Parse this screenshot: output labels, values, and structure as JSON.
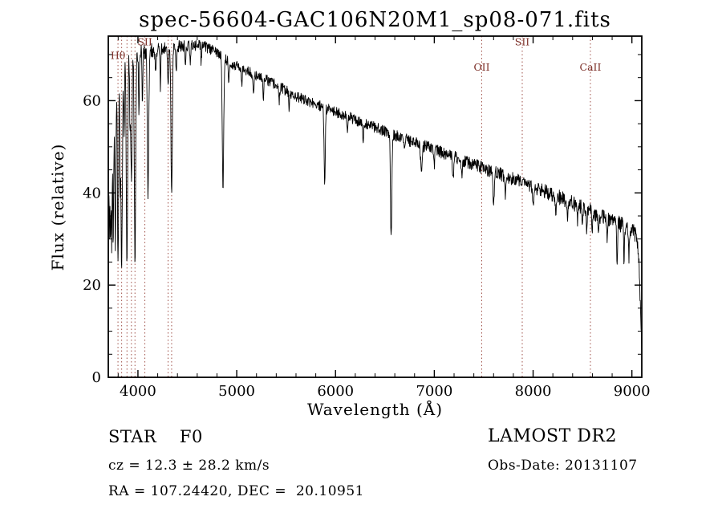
{
  "chart_data": {
    "type": "line",
    "title": "spec-56604-GAC106N20M1_sp08-071.fits",
    "xlabel": "Wavelength (Å)",
    "ylabel": "Flux (relative)",
    "xlim": [
      3700,
      9100
    ],
    "ylim": [
      0,
      74
    ],
    "xticks": [
      4000,
      5000,
      6000,
      7000,
      8000,
      9000
    ],
    "yticks": [
      0,
      20,
      40,
      60
    ],
    "x_minor_step": 200,
    "y_minor_step": 5,
    "grid": false,
    "legend": "none",
    "line_color": "#000000",
    "marker_line_color": "#a0524a",
    "marker_label_color": "#7b2d26",
    "spectral_markers": [
      {
        "label": "Hθ",
        "wavelength": 3798,
        "label_flux": 69
      },
      {
        "label": "",
        "wavelength": 3835,
        "label_flux": 0
      },
      {
        "label": "",
        "wavelength": 3889,
        "label_flux": 0
      },
      {
        "label": "",
        "wavelength": 3934,
        "label_flux": 0
      },
      {
        "label": "",
        "wavelength": 3970,
        "label_flux": 0
      },
      {
        "label": "SII",
        "wavelength": 4070,
        "label_flux": 72
      },
      {
        "label": "",
        "wavelength": 4305,
        "label_flux": 0
      },
      {
        "label": "",
        "wavelength": 4341,
        "label_flux": 0
      },
      {
        "label": "OII",
        "wavelength": 7480,
        "label_flux": 66.5
      },
      {
        "label": "SII",
        "wavelength": 7890,
        "label_flux": 72
      },
      {
        "label": "CaII",
        "wavelength": 8580,
        "label_flux": 66.5
      }
    ],
    "continuum": [
      [
        3700,
        62
      ],
      [
        3760,
        65
      ],
      [
        3820,
        67
      ],
      [
        3880,
        69
      ],
      [
        3950,
        70
      ],
      [
        4050,
        70.5
      ],
      [
        4150,
        71
      ],
      [
        4300,
        71.5
      ],
      [
        4500,
        72
      ],
      [
        4650,
        72
      ],
      [
        4800,
        70.5
      ],
      [
        4950,
        68
      ],
      [
        5100,
        66.5
      ],
      [
        5250,
        65
      ],
      [
        5400,
        63.5
      ],
      [
        5550,
        61.5
      ],
      [
        5700,
        60
      ],
      [
        5850,
        58.8
      ],
      [
        6000,
        57.5
      ],
      [
        6150,
        56.3
      ],
      [
        6300,
        55
      ],
      [
        6450,
        53.8
      ],
      [
        6600,
        52.5
      ],
      [
        6750,
        51.3
      ],
      [
        6900,
        50.2
      ],
      [
        7050,
        49
      ],
      [
        7200,
        47.8
      ],
      [
        7350,
        46.5
      ],
      [
        7500,
        45.3
      ],
      [
        7650,
        44.2
      ],
      [
        7800,
        43
      ],
      [
        7950,
        41.8
      ],
      [
        8100,
        40.5
      ],
      [
        8250,
        39.2
      ],
      [
        8400,
        37.8
      ],
      [
        8550,
        36.3
      ],
      [
        8700,
        34.8
      ],
      [
        8850,
        33.5
      ],
      [
        9000,
        32
      ],
      [
        9040,
        31
      ],
      [
        9070,
        26
      ],
      [
        9100,
        7
      ]
    ],
    "absorption_lines": [
      [
        3700,
        45,
        4
      ],
      [
        3712,
        30,
        4
      ],
      [
        3722,
        28,
        4
      ],
      [
        3734,
        34,
        5
      ],
      [
        3750,
        36,
        5
      ],
      [
        3771,
        38,
        6
      ],
      [
        3798,
        42,
        6
      ],
      [
        3820,
        20,
        4
      ],
      [
        3835,
        44,
        7
      ],
      [
        3860,
        18,
        4
      ],
      [
        3889,
        45,
        7
      ],
      [
        3920,
        15,
        4
      ],
      [
        3934,
        28,
        6
      ],
      [
        3970,
        44,
        7
      ],
      [
        4010,
        12,
        4
      ],
      [
        4045,
        10,
        4
      ],
      [
        4102,
        31,
        7
      ],
      [
        4180,
        6,
        5
      ],
      [
        4227,
        8,
        4
      ],
      [
        4305,
        8,
        5
      ],
      [
        4341,
        32,
        7
      ],
      [
        4387,
        6,
        4
      ],
      [
        4481,
        5,
        4
      ],
      [
        4530,
        4,
        4
      ],
      [
        4640,
        4,
        4
      ],
      [
        4861,
        29,
        7
      ],
      [
        4920,
        5,
        4
      ],
      [
        5050,
        4,
        4
      ],
      [
        5170,
        5,
        5
      ],
      [
        5270,
        4,
        4
      ],
      [
        5430,
        4,
        4
      ],
      [
        5530,
        4,
        4
      ],
      [
        5890,
        16,
        6
      ],
      [
        6120,
        4,
        4
      ],
      [
        6280,
        4,
        5
      ],
      [
        6563,
        22,
        7
      ],
      [
        6700,
        3,
        4
      ],
      [
        6870,
        6,
        8
      ],
      [
        7000,
        4,
        4
      ],
      [
        7190,
        5,
        6
      ],
      [
        7280,
        4,
        5
      ],
      [
        7600,
        6,
        8
      ],
      [
        7720,
        4,
        5
      ],
      [
        8000,
        4,
        5
      ],
      [
        8230,
        5,
        5
      ],
      [
        8350,
        4,
        4
      ],
      [
        8450,
        4,
        4
      ],
      [
        8498,
        4,
        4
      ],
      [
        8542,
        5,
        4
      ],
      [
        8598,
        4,
        4
      ],
      [
        8662,
        5,
        4
      ],
      [
        8750,
        5,
        4
      ],
      [
        8850,
        8,
        5
      ],
      [
        8920,
        7,
        4
      ],
      [
        8970,
        6,
        4
      ]
    ],
    "noise": {
      "seed": 20131107,
      "segments": [
        [
          3700,
          3.5
        ],
        [
          3950,
          2.2
        ],
        [
          4200,
          1.4
        ],
        [
          5000,
          1.1
        ],
        [
          6500,
          1.2
        ],
        [
          7500,
          1.4
        ],
        [
          8300,
          1.6
        ],
        [
          9100,
          1.8
        ]
      ]
    }
  },
  "annotations": {
    "star_class": "STAR    F0",
    "cz": "cz = 12.3 ± 28.2 km/s",
    "radec": "RA = 107.24420, DEC =  20.10951",
    "survey": "LAMOST DR2",
    "obs_date": "Obs-Date: 20131107"
  }
}
